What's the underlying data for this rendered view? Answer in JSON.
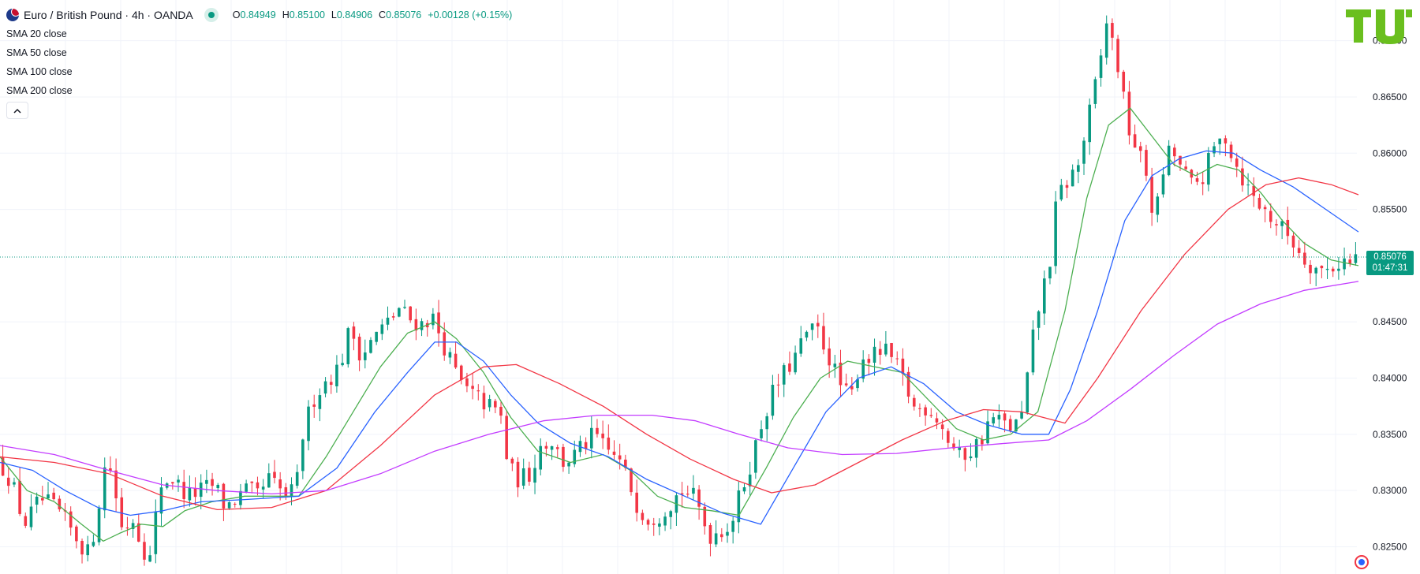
{
  "header": {
    "title": "Euro / British Pound · 4h · OANDA",
    "ohlc": [
      {
        "key": "O",
        "value": "0.84949"
      },
      {
        "key": "H",
        "value": "0.85100"
      },
      {
        "key": "L",
        "value": "0.84906"
      },
      {
        "key": "C",
        "value": "0.85076"
      },
      {
        "key": "",
        "value": "+0.00128 (+0.15%)"
      }
    ]
  },
  "indicators": [
    {
      "name": "SMA",
      "args": "20 close",
      "color": "#4caf50"
    },
    {
      "name": "SMA",
      "args": "50 close",
      "color": "#2962ff"
    },
    {
      "name": "SMA",
      "args": "100 close",
      "color": "#f23645"
    },
    {
      "name": "SMA",
      "args": "200 close",
      "color": "#c33cff"
    }
  ],
  "collapse_glyph": "^",
  "last_price": {
    "value": "0.85076",
    "countdown": "01:47:31"
  },
  "logo_text": "TU",
  "colors": {
    "up": "#089981",
    "down": "#f23645",
    "grid": "#f0f3fa",
    "axis_text": "#131722",
    "logo": "#6abf1e"
  },
  "chart_data": {
    "type": "candlestick",
    "title": "Euro / British Pound · 4h · OANDA",
    "y_ticks": [
      "0.87000",
      "0.86500",
      "0.86000",
      "0.85500",
      "0.85076",
      "0.84500",
      "0.84000",
      "0.83500",
      "0.83000",
      "0.82500"
    ],
    "y_range": [
      0.823,
      0.8732
    ],
    "grid": true,
    "candles_count": 240,
    "price_path": [
      [
        0,
        0.8328
      ],
      [
        5,
        0.831
      ],
      [
        10,
        0.827
      ],
      [
        16,
        0.8292
      ],
      [
        22,
        0.8283
      ],
      [
        28,
        0.8262
      ],
      [
        34,
        0.8242
      ],
      [
        40,
        0.8325
      ],
      [
        42,
        0.8318
      ],
      [
        46,
        0.8265
      ],
      [
        50,
        0.8275
      ],
      [
        56,
        0.8235
      ],
      [
        60,
        0.8305
      ],
      [
        64,
        0.8312
      ],
      [
        70,
        0.8295
      ],
      [
        75,
        0.83
      ],
      [
        80,
        0.8305
      ],
      [
        84,
        0.8285
      ],
      [
        92,
        0.83
      ],
      [
        96,
        0.8295
      ],
      [
        100,
        0.831
      ],
      [
        106,
        0.8295
      ],
      [
        110,
        0.83
      ],
      [
        112,
        0.8345
      ],
      [
        116,
        0.838
      ],
      [
        120,
        0.8395
      ],
      [
        126,
        0.841
      ],
      [
        130,
        0.8445
      ],
      [
        134,
        0.842
      ],
      [
        140,
        0.844
      ],
      [
        144,
        0.845
      ],
      [
        148,
        0.8462
      ],
      [
        152,
        0.8452
      ],
      [
        156,
        0.8448
      ],
      [
        160,
        0.8455
      ],
      [
        164,
        0.8432
      ],
      [
        168,
        0.8408
      ],
      [
        172,
        0.839
      ],
      [
        178,
        0.838
      ],
      [
        184,
        0.837
      ],
      [
        186,
        0.8362
      ],
      [
        188,
        0.832
      ],
      [
        192,
        0.831
      ],
      [
        196,
        0.8315
      ],
      [
        200,
        0.834
      ],
      [
        204,
        0.8345
      ],
      [
        208,
        0.8325
      ],
      [
        212,
        0.833
      ],
      [
        216,
        0.834
      ],
      [
        220,
        0.835
      ],
      [
        224,
        0.8335
      ],
      [
        228,
        0.833
      ],
      [
        232,
        0.831
      ],
      [
        236,
        0.8285
      ],
      [
        240,
        0.8275
      ],
      [
        244,
        0.828
      ],
      [
        248,
        0.829
      ],
      [
        252,
        0.83
      ],
      [
        256,
        0.8295
      ],
      [
        258,
        0.8285
      ],
      [
        262,
        0.826
      ],
      [
        266,
        0.8265
      ],
      [
        270,
        0.827
      ],
      [
        274,
        0.83
      ],
      [
        278,
        0.833
      ],
      [
        282,
        0.8365
      ],
      [
        286,
        0.839
      ],
      [
        290,
        0.8405
      ],
      [
        294,
        0.842
      ],
      [
        298,
        0.844
      ],
      [
        302,
        0.8442
      ],
      [
        306,
        0.842
      ],
      [
        310,
        0.8395
      ],
      [
        314,
        0.838
      ],
      [
        318,
        0.842
      ],
      [
        322,
        0.8418
      ],
      [
        326,
        0.8425
      ],
      [
        330,
        0.8415
      ],
      [
        334,
        0.8395
      ],
      [
        338,
        0.837
      ],
      [
        342,
        0.8375
      ],
      [
        346,
        0.8365
      ],
      [
        350,
        0.8345
      ],
      [
        354,
        0.833
      ],
      [
        358,
        0.8335
      ],
      [
        362,
        0.8345
      ],
      [
        366,
        0.8365
      ],
      [
        370,
        0.836
      ],
      [
        374,
        0.8355
      ],
      [
        378,
        0.837
      ],
      [
        380,
        0.842
      ],
      [
        384,
        0.847
      ],
      [
        388,
        0.851
      ],
      [
        390,
        0.856
      ],
      [
        394,
        0.8575
      ],
      [
        398,
        0.859
      ],
      [
        402,
        0.8635
      ],
      [
        406,
        0.868
      ],
      [
        408,
        0.872
      ],
      [
        412,
        0.8685
      ],
      [
        416,
        0.8625
      ],
      [
        420,
        0.86
      ],
      [
        424,
        0.8575
      ],
      [
        426,
        0.853
      ],
      [
        428,
        0.8575
      ],
      [
        432,
        0.8605
      ],
      [
        436,
        0.8585
      ],
      [
        440,
        0.857
      ],
      [
        444,
        0.858
      ],
      [
        448,
        0.8605
      ],
      [
        452,
        0.8615
      ],
      [
        456,
        0.859
      ],
      [
        460,
        0.857
      ],
      [
        464,
        0.8555
      ],
      [
        468,
        0.8545
      ],
      [
        472,
        0.8535
      ],
      [
        476,
        0.8525
      ],
      [
        480,
        0.851
      ],
      [
        484,
        0.85
      ],
      [
        488,
        0.8495
      ],
      [
        492,
        0.85
      ],
      [
        496,
        0.8505
      ],
      [
        498,
        0.85
      ],
      [
        500,
        0.8507
      ]
    ],
    "sma20_path": [
      [
        0,
        0.833
      ],
      [
        10,
        0.83
      ],
      [
        20,
        0.829
      ],
      [
        30,
        0.827
      ],
      [
        38,
        0.8255
      ],
      [
        44,
        0.8262
      ],
      [
        52,
        0.827
      ],
      [
        60,
        0.8268
      ],
      [
        68,
        0.8282
      ],
      [
        78,
        0.829
      ],
      [
        90,
        0.8295
      ],
      [
        110,
        0.8295
      ],
      [
        120,
        0.833
      ],
      [
        130,
        0.837
      ],
      [
        140,
        0.841
      ],
      [
        150,
        0.844
      ],
      [
        160,
        0.845
      ],
      [
        168,
        0.8435
      ],
      [
        178,
        0.8405
      ],
      [
        188,
        0.8365
      ],
      [
        198,
        0.8335
      ],
      [
        210,
        0.8325
      ],
      [
        222,
        0.8332
      ],
      [
        232,
        0.8318
      ],
      [
        242,
        0.8295
      ],
      [
        252,
        0.8285
      ],
      [
        262,
        0.8282
      ],
      [
        272,
        0.8278
      ],
      [
        282,
        0.832
      ],
      [
        292,
        0.8365
      ],
      [
        302,
        0.84
      ],
      [
        312,
        0.8415
      ],
      [
        322,
        0.841
      ],
      [
        332,
        0.8405
      ],
      [
        342,
        0.838
      ],
      [
        352,
        0.8355
      ],
      [
        362,
        0.8345
      ],
      [
        372,
        0.835
      ],
      [
        382,
        0.837
      ],
      [
        392,
        0.846
      ],
      [
        400,
        0.856
      ],
      [
        408,
        0.8625
      ],
      [
        416,
        0.864
      ],
      [
        424,
        0.8615
      ],
      [
        432,
        0.859
      ],
      [
        440,
        0.858
      ],
      [
        448,
        0.859
      ],
      [
        456,
        0.8585
      ],
      [
        464,
        0.8565
      ],
      [
        472,
        0.854
      ],
      [
        480,
        0.852
      ],
      [
        490,
        0.8505
      ],
      [
        500,
        0.85
      ]
    ],
    "sma50_path": [
      [
        0,
        0.8325
      ],
      [
        12,
        0.8318
      ],
      [
        24,
        0.83
      ],
      [
        36,
        0.8285
      ],
      [
        48,
        0.8278
      ],
      [
        60,
        0.8282
      ],
      [
        74,
        0.829
      ],
      [
        90,
        0.8292
      ],
      [
        110,
        0.8295
      ],
      [
        124,
        0.832
      ],
      [
        138,
        0.837
      ],
      [
        150,
        0.8405
      ],
      [
        160,
        0.8432
      ],
      [
        168,
        0.8432
      ],
      [
        178,
        0.8415
      ],
      [
        188,
        0.8385
      ],
      [
        198,
        0.836
      ],
      [
        210,
        0.8342
      ],
      [
        224,
        0.833
      ],
      [
        238,
        0.831
      ],
      [
        252,
        0.8295
      ],
      [
        266,
        0.828
      ],
      [
        280,
        0.827
      ],
      [
        292,
        0.832
      ],
      [
        304,
        0.837
      ],
      [
        316,
        0.84
      ],
      [
        328,
        0.841
      ],
      [
        340,
        0.8395
      ],
      [
        352,
        0.837
      ],
      [
        364,
        0.8358
      ],
      [
        376,
        0.835
      ],
      [
        386,
        0.835
      ],
      [
        394,
        0.839
      ],
      [
        404,
        0.846
      ],
      [
        414,
        0.854
      ],
      [
        424,
        0.858
      ],
      [
        434,
        0.8595
      ],
      [
        444,
        0.8602
      ],
      [
        454,
        0.86
      ],
      [
        464,
        0.8585
      ],
      [
        476,
        0.857
      ],
      [
        488,
        0.855
      ],
      [
        500,
        0.853
      ]
    ],
    "sma100_path": [
      [
        0,
        0.833
      ],
      [
        20,
        0.8325
      ],
      [
        40,
        0.8315
      ],
      [
        60,
        0.8295
      ],
      [
        80,
        0.8283
      ],
      [
        100,
        0.8285
      ],
      [
        120,
        0.83
      ],
      [
        140,
        0.834
      ],
      [
        160,
        0.8385
      ],
      [
        178,
        0.841
      ],
      [
        190,
        0.8412
      ],
      [
        206,
        0.8395
      ],
      [
        222,
        0.8375
      ],
      [
        238,
        0.835
      ],
      [
        254,
        0.8328
      ],
      [
        270,
        0.831
      ],
      [
        284,
        0.8298
      ],
      [
        300,
        0.8305
      ],
      [
        316,
        0.8325
      ],
      [
        332,
        0.8345
      ],
      [
        348,
        0.8362
      ],
      [
        362,
        0.8372
      ],
      [
        376,
        0.837
      ],
      [
        392,
        0.836
      ],
      [
        404,
        0.84
      ],
      [
        420,
        0.846
      ],
      [
        436,
        0.851
      ],
      [
        452,
        0.855
      ],
      [
        466,
        0.8572
      ],
      [
        478,
        0.8578
      ],
      [
        490,
        0.8572
      ],
      [
        500,
        0.8563
      ]
    ],
    "sma200_path": [
      [
        0,
        0.834
      ],
      [
        20,
        0.8332
      ],
      [
        40,
        0.8318
      ],
      [
        60,
        0.8305
      ],
      [
        80,
        0.83
      ],
      [
        100,
        0.8297
      ],
      [
        120,
        0.83
      ],
      [
        140,
        0.8315
      ],
      [
        160,
        0.8335
      ],
      [
        180,
        0.835
      ],
      [
        200,
        0.8362
      ],
      [
        220,
        0.8367
      ],
      [
        240,
        0.8367
      ],
      [
        256,
        0.8362
      ],
      [
        272,
        0.835
      ],
      [
        290,
        0.8338
      ],
      [
        310,
        0.8332
      ],
      [
        330,
        0.8333
      ],
      [
        350,
        0.8338
      ],
      [
        370,
        0.8342
      ],
      [
        386,
        0.8345
      ],
      [
        400,
        0.8362
      ],
      [
        416,
        0.839
      ],
      [
        432,
        0.842
      ],
      [
        448,
        0.8448
      ],
      [
        464,
        0.8466
      ],
      [
        480,
        0.8478
      ],
      [
        500,
        0.8486
      ]
    ]
  }
}
